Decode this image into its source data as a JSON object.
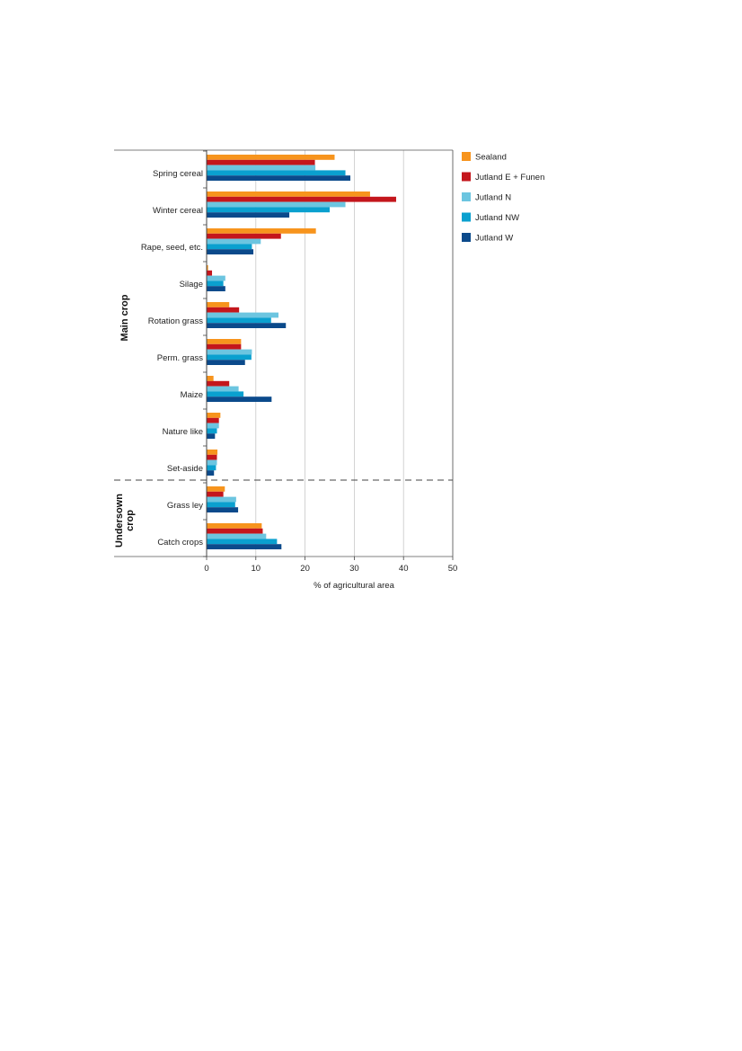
{
  "chart_data": {
    "type": "bar",
    "orientation": "horizontal",
    "categories": [
      "Spring cereal",
      "Winter cereal",
      "Rape, seed, etc.",
      "Silage",
      "Rotation grass",
      "Perm. grass",
      "Maize",
      "Nature like",
      "Set-aside",
      "Grass ley",
      "Catch crops"
    ],
    "groups": [
      {
        "label": "Main crop",
        "categories": [
          "Spring cereal",
          "Winter cereal",
          "Rape, seed, etc.",
          "Silage",
          "Rotation grass",
          "Perm. grass",
          "Maize",
          "Nature like",
          "Set-aside"
        ]
      },
      {
        "label": "Undersown crop",
        "label_lines": [
          "Undersown",
          "crop"
        ],
        "categories": [
          "Grass ley",
          "Catch crops"
        ]
      }
    ],
    "series": [
      {
        "name": "Sealand",
        "color": "#f7941d",
        "values": [
          26.0,
          33.2,
          22.2,
          0.3,
          4.6,
          7.0,
          1.4,
          2.8,
          2.2,
          3.7,
          11.2
        ]
      },
      {
        "name": "Jutland E + Funen",
        "color": "#c4161c",
        "values": [
          22.0,
          38.5,
          15.1,
          1.1,
          6.6,
          7.0,
          4.6,
          2.5,
          2.1,
          3.4,
          11.4
        ]
      },
      {
        "name": "Jutland N",
        "color": "#6cc5e0",
        "values": [
          22.1,
          28.2,
          11.0,
          3.8,
          14.6,
          9.2,
          6.5,
          2.5,
          2.1,
          6.0,
          12.1
        ]
      },
      {
        "name": "Jutland NW",
        "color": "#0aa0cf",
        "values": [
          28.2,
          25.0,
          9.2,
          3.4,
          13.1,
          9.1,
          7.5,
          2.1,
          1.9,
          5.8,
          14.3
        ]
      },
      {
        "name": "Jutland W",
        "color": "#0b4a8b",
        "values": [
          29.2,
          16.8,
          9.5,
          3.8,
          16.1,
          7.8,
          13.2,
          1.7,
          1.5,
          6.4,
          15.2
        ]
      }
    ],
    "xlabel": "% of agricultural area",
    "xlim": [
      0,
      50
    ],
    "xticks": [
      0,
      10,
      20,
      30,
      40,
      50
    ],
    "grid": true,
    "legend_position": "right"
  }
}
